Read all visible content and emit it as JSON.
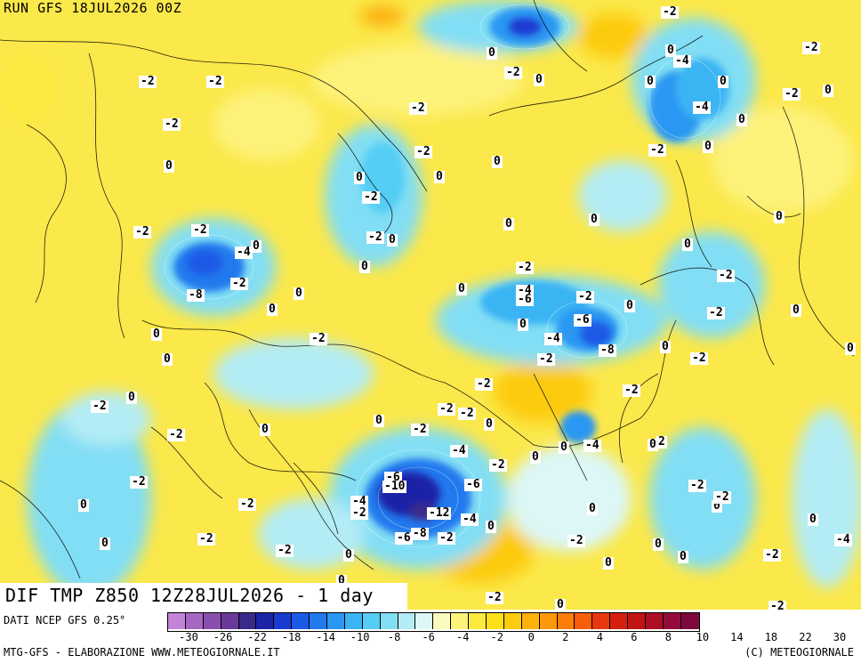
{
  "run_title": "RUN GFS 18JUL2026 00Z",
  "caption": "DIF TMP Z850 12Z28JUL2026 - 1 day",
  "source": "DATI NCEP GFS 0.25°",
  "footer_left": "MTG-GFS - ELABORAZIONE WWW.METEOGIORNALE.IT",
  "footer_right": "(C) METEOGIORNALE",
  "legend": {
    "colors": [
      "#c383d7",
      "#a667c2",
      "#8a4fae",
      "#6a3a9a",
      "#3a2a8a",
      "#1d23a6",
      "#1a3bd0",
      "#1c5ae6",
      "#2179ee",
      "#2b97f2",
      "#3ab4f4",
      "#55cdf5",
      "#82def4",
      "#b4ecf5",
      "#dcf7f6",
      "#fbfbbe",
      "#fdf27a",
      "#fdea3f",
      "#fde018",
      "#fdcb10",
      "#fdb20b",
      "#fd9808",
      "#fd7d07",
      "#f85d0a",
      "#e9380d",
      "#d6200f",
      "#c31414",
      "#ac0e26",
      "#950a3a",
      "#7d093e"
    ],
    "ticks": [
      {
        "label": "-30",
        "pos": 0
      },
      {
        "label": "-26",
        "pos": 1
      },
      {
        "label": "-22",
        "pos": 2
      },
      {
        "label": "-18",
        "pos": 3
      },
      {
        "label": "-14",
        "pos": 4
      },
      {
        "label": "-10",
        "pos": 5
      },
      {
        "label": "-8",
        "pos": 6
      },
      {
        "label": "-6",
        "pos": 7
      },
      {
        "label": "-4",
        "pos": 8
      },
      {
        "label": "-2",
        "pos": 9
      },
      {
        "label": "0",
        "pos": 10
      },
      {
        "label": "2",
        "pos": 11
      },
      {
        "label": "4",
        "pos": 12
      },
      {
        "label": "6",
        "pos": 13
      },
      {
        "label": "8",
        "pos": 14
      },
      {
        "label": "10",
        "pos": 15
      },
      {
        "label": "14",
        "pos": 16
      },
      {
        "label": "18",
        "pos": 17
      },
      {
        "label": "22",
        "pos": 18
      },
      {
        "label": "30",
        "pos": 19
      }
    ]
  },
  "map_labels": [
    {
      "text": "-2",
      "x": -2
    },
    {
      "text": "-2",
      "x": -2
    },
    {
      "text": "-2",
      "x": -2
    },
    {
      "text": "-2",
      "x": -2
    },
    {
      "text": "0",
      "x": 0
    },
    {
      "text": "0",
      "x": 0
    },
    {
      "text": "-2",
      "x": -2
    },
    {
      "text": "-2",
      "x": -2
    },
    {
      "text": "0",
      "x": 0
    },
    {
      "text": "-2",
      "x": -2
    },
    {
      "text": "0",
      "x": 0
    },
    {
      "text": "-4",
      "x": -4
    },
    {
      "text": "0",
      "x": 0
    },
    {
      "text": "0",
      "x": 0
    },
    {
      "text": "-2",
      "x": -2
    },
    {
      "text": "-4",
      "x": -4
    },
    {
      "text": "0",
      "x": 0
    },
    {
      "text": "0",
      "x": 0
    },
    {
      "text": "-2",
      "x": -2
    },
    {
      "text": "-2",
      "x": -2
    },
    {
      "text": "0",
      "x": 0
    },
    {
      "text": "0",
      "x": 0
    },
    {
      "text": "-2",
      "x": -2
    },
    {
      "text": "-2",
      "x": -2
    },
    {
      "text": "-4",
      "x": -4
    },
    {
      "text": "0",
      "x": 0
    },
    {
      "text": "0",
      "x": 0
    },
    {
      "text": "-8",
      "x": -8
    },
    {
      "text": "-2",
      "x": -2
    },
    {
      "text": "0",
      "x": 0
    },
    {
      "text": "0",
      "x": 0
    },
    {
      "text": "-2",
      "x": -2
    },
    {
      "text": "0",
      "x": 0
    },
    {
      "text": "0",
      "x": 0
    },
    {
      "text": "-2",
      "x": -2
    },
    {
      "text": "-4",
      "x": -4
    },
    {
      "text": "-6",
      "x": -6
    },
    {
      "text": "-2",
      "x": -2
    },
    {
      "text": "0",
      "x": 0
    },
    {
      "text": "-2",
      "x": -2
    },
    {
      "text": "0",
      "x": 0
    },
    {
      "text": "0",
      "x": 0
    },
    {
      "text": "-2",
      "x": -2
    },
    {
      "text": "0",
      "x": 0
    },
    {
      "text": "-6",
      "x": -6
    },
    {
      "text": "-4",
      "x": -4
    },
    {
      "text": "-8",
      "x": -8
    },
    {
      "text": "0",
      "x": 0
    },
    {
      "text": "-2",
      "x": -2
    },
    {
      "text": "0",
      "x": 0
    },
    {
      "text": "0",
      "x": 0
    },
    {
      "text": "-2",
      "x": -2
    },
    {
      "text": "-2",
      "x": -2
    },
    {
      "text": "0",
      "x": 0
    },
    {
      "text": "-2",
      "x": -2
    },
    {
      "text": "-2",
      "x": -2
    },
    {
      "text": "-2",
      "x": -2
    },
    {
      "text": "0",
      "x": 0
    },
    {
      "text": "0",
      "x": 0
    },
    {
      "text": "-2",
      "x": -2
    },
    {
      "text": "-2",
      "x": -2
    },
    {
      "text": "0",
      "x": 0
    },
    {
      "text": "-4",
      "x": -4
    },
    {
      "text": "0",
      "x": 0
    },
    {
      "text": "-4",
      "x": -4
    },
    {
      "text": "0",
      "x": 0
    },
    {
      "text": "2",
      "x": 2
    },
    {
      "text": "-2",
      "x": -2
    },
    {
      "text": "-2",
      "x": -2
    },
    {
      "text": "-6",
      "x": -6
    },
    {
      "text": "-10",
      "x": -10
    },
    {
      "text": "-6",
      "x": -6
    },
    {
      "text": "-4",
      "x": -4
    },
    {
      "text": "-2",
      "x": -2
    },
    {
      "text": "-12",
      "x": -12
    },
    {
      "text": "-4",
      "x": -4
    },
    {
      "text": "-8",
      "x": -8
    },
    {
      "text": "-6",
      "x": -6
    },
    {
      "text": "-2",
      "x": -2
    },
    {
      "text": "0",
      "x": 0
    },
    {
      "text": "0",
      "x": 0
    },
    {
      "text": "0",
      "x": 0
    },
    {
      "text": "-2",
      "x": -2
    },
    {
      "text": "-2",
      "x": -2
    },
    {
      "text": "0",
      "x": 0
    },
    {
      "text": "0",
      "x": 0
    },
    {
      "text": "0",
      "x": 0
    },
    {
      "text": "-2",
      "x": -2
    },
    {
      "text": "-2",
      "x": -2
    },
    {
      "text": "-2",
      "x": -2
    },
    {
      "text": "0",
      "x": 0
    },
    {
      "text": "0",
      "x": 0
    },
    {
      "text": "-2",
      "x": -2
    },
    {
      "text": "0",
      "x": 0
    },
    {
      "text": "0",
      "x": 0
    },
    {
      "text": "0",
      "x": 0
    },
    {
      "text": "-2",
      "x": -2
    },
    {
      "text": "-2",
      "x": -2
    },
    {
      "text": "0",
      "x": 0
    },
    {
      "text": "0",
      "x": 0
    },
    {
      "text": "0",
      "x": 0
    },
    {
      "text": "-2",
      "x": -2
    },
    {
      "text": "-4",
      "x": -4
    },
    {
      "text": "-2",
      "x": -2
    },
    {
      "text": "0",
      "x": 0
    },
    {
      "text": "0",
      "x": 0
    },
    {
      "text": "-2",
      "x": -2
    },
    {
      "text": "0",
      "x": 0
    },
    {
      "text": "-2",
      "x": -2
    },
    {
      "text": "0",
      "x": 0
    },
    {
      "text": "0",
      "x": 0
    }
  ]
}
